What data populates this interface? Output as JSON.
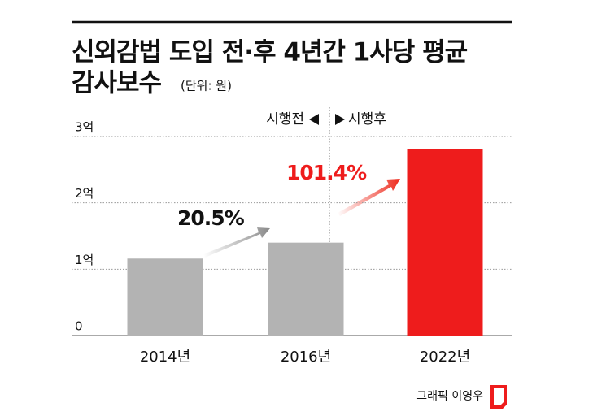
{
  "chart_data": {
    "type": "bar",
    "title": [
      "신외감법 도입 전·후 4년간 1사당 평균",
      "감사보수"
    ],
    "unit_note": "(단위: 원)",
    "categories": [
      "2014년",
      "2016년",
      "2022년"
    ],
    "values": [
      1.16,
      1.4,
      2.81
    ],
    "colors": [
      "#b3b3b3",
      "#b3b3b3",
      "#ee1c1c"
    ],
    "ylim": [
      0,
      3
    ],
    "yticks": [
      0,
      {
        "value": 1,
        "label": "1억"
      },
      {
        "value": 2,
        "label": "2억"
      },
      {
        "value": 3,
        "label": "3억"
      }
    ],
    "grid": true,
    "annotations": [
      "20.5%",
      "101.4%"
    ],
    "period_labels": [
      "시행전",
      "시행후"
    ],
    "credit": "그래픽 이영우"
  }
}
